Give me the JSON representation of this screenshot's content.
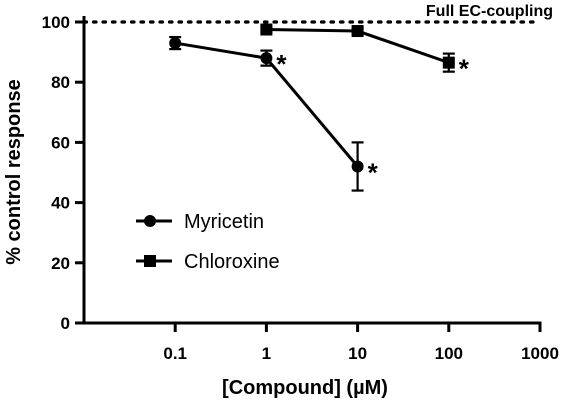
{
  "chart_data": {
    "type": "line",
    "xlabel": "[Compound] (µM)",
    "ylabel": "% control response",
    "xscale": "log",
    "xlim": [
      0.01,
      1000
    ],
    "ylim": [
      0,
      100
    ],
    "x_ticks": [
      "0.1",
      "1",
      "10",
      "100",
      "1000"
    ],
    "y_ticks": [
      "0",
      "20",
      "40",
      "60",
      "80",
      "100"
    ],
    "grid": false,
    "legend_position": "lower-left",
    "reference_line": {
      "y": 100,
      "style": "dotted",
      "label": "Full EC-coupling"
    },
    "series": [
      {
        "name": "Myricetin",
        "marker": "circle",
        "x": [
          0.1,
          1,
          10
        ],
        "y": [
          93,
          88,
          52
        ],
        "error": [
          2,
          2.5,
          8
        ],
        "significant": [
          false,
          true,
          true
        ]
      },
      {
        "name": "Chloroxine",
        "marker": "square",
        "x": [
          1,
          10,
          100
        ],
        "y": [
          97.5,
          97,
          86.5
        ],
        "error": [
          0.8,
          0.8,
          3
        ],
        "significant": [
          false,
          false,
          true
        ]
      }
    ],
    "significance_symbol": "*"
  }
}
